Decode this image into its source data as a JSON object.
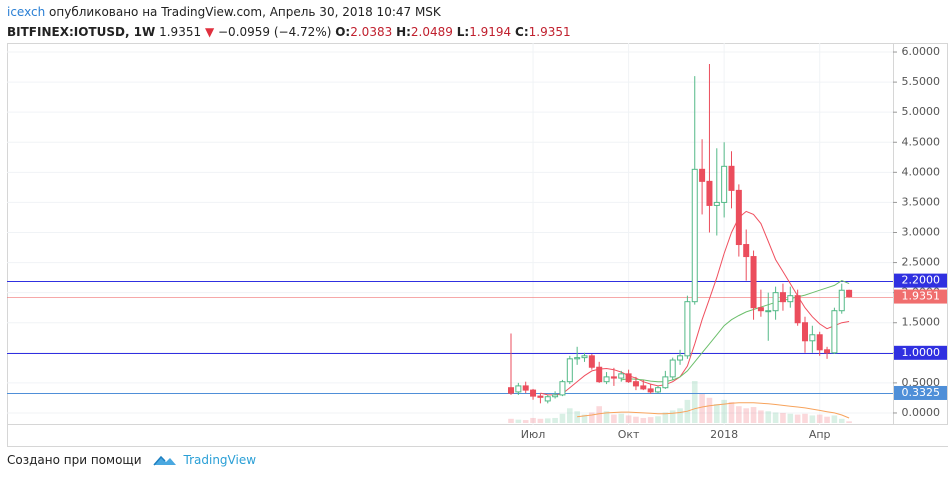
{
  "header": {
    "user": "icexch",
    "published": "опубликовано на TradingView.com, Апрель 30, 2018 10:47 MSK",
    "symbol": "BITFINEX:IOTUSD, 1W",
    "price": "1.9351",
    "change": "−0.0959 (−4.72%)",
    "ohlc": [
      {
        "key": "O:",
        "value": "2.0383"
      },
      {
        "key": "H:",
        "value": "2.0489"
      },
      {
        "key": "L:",
        "value": "1.9194"
      },
      {
        "key": "C:",
        "value": "1.9351"
      }
    ]
  },
  "chart_data": {
    "type": "candlestick",
    "categories": [
      null,
      null,
      null,
      "Июл",
      null,
      null,
      null,
      null,
      null,
      null,
      null,
      null,
      null,
      null,
      null,
      null,
      "Окт",
      null,
      null,
      null,
      null,
      null,
      null,
      null,
      null,
      null,
      null,
      null,
      null,
      "2018",
      null,
      null,
      null,
      null,
      null,
      null,
      null,
      null,
      null,
      null,
      null,
      null,
      "Апр",
      null,
      null,
      null,
      null
    ],
    "open": [
      0.42,
      0.35,
      0.45,
      0.38,
      0.28,
      0.2,
      0.27,
      0.3,
      0.52,
      0.9,
      0.92,
      0.95,
      0.76,
      0.52,
      0.6,
      0.58,
      0.65,
      0.52,
      0.45,
      0.4,
      0.35,
      0.42,
      0.6,
      0.88,
      0.95,
      1.85,
      4.05,
      3.85,
      3.45,
      3.5,
      4.1,
      3.7,
      2.8,
      2.6,
      1.75,
      1.7,
      1.7,
      2.0,
      1.85,
      1.95,
      1.5,
      1.2,
      1.3,
      1.05,
      1.0,
      1.7,
      2.0383
    ],
    "high": [
      1.32,
      0.5,
      0.52,
      0.4,
      0.32,
      0.3,
      0.36,
      0.55,
      0.95,
      1.1,
      1.0,
      0.98,
      0.85,
      0.68,
      0.75,
      0.7,
      0.72,
      0.6,
      0.55,
      0.48,
      0.45,
      0.7,
      0.92,
      1.05,
      1.95,
      5.6,
      4.55,
      5.8,
      4.4,
      4.5,
      4.35,
      3.8,
      3.05,
      2.7,
      2.05,
      2.0,
      2.1,
      2.15,
      2.1,
      2.05,
      1.6,
      1.45,
      1.35,
      1.1,
      1.75,
      2.15,
      2.0489
    ],
    "low": [
      0.3,
      0.3,
      0.33,
      0.22,
      0.16,
      0.16,
      0.24,
      0.28,
      0.48,
      0.8,
      0.85,
      0.72,
      0.5,
      0.48,
      0.45,
      0.52,
      0.5,
      0.38,
      0.38,
      0.32,
      0.33,
      0.4,
      0.55,
      0.8,
      0.9,
      1.8,
      3.3,
      3.0,
      2.95,
      3.25,
      3.4,
      2.6,
      2.2,
      1.55,
      1.6,
      1.2,
      1.55,
      1.7,
      1.75,
      1.45,
      1.0,
      1.0,
      0.95,
      0.9,
      0.98,
      1.65,
      1.9194
    ],
    "close": [
      0.33,
      0.45,
      0.38,
      0.28,
      0.26,
      0.27,
      0.3,
      0.52,
      0.9,
      0.92,
      0.95,
      0.76,
      0.52,
      0.6,
      0.58,
      0.65,
      0.52,
      0.45,
      0.4,
      0.35,
      0.42,
      0.6,
      0.88,
      0.95,
      1.85,
      4.05,
      3.85,
      3.45,
      3.5,
      4.1,
      3.7,
      2.8,
      2.6,
      1.75,
      1.7,
      1.7,
      2.0,
      1.85,
      1.95,
      1.5,
      1.2,
      1.3,
      1.05,
      1.0,
      1.7,
      2.04,
      1.9351
    ],
    "up_color": "#53b987",
    "down_color": "#eb4d5c",
    "moving_averages": [
      {
        "color": "#f0505f",
        "values": [
          null,
          null,
          null,
          null,
          0.33,
          0.3,
          0.3,
          0.32,
          0.42,
          0.52,
          0.62,
          0.7,
          0.73,
          0.74,
          0.72,
          0.68,
          0.62,
          0.58,
          0.52,
          0.48,
          0.45,
          0.47,
          0.52,
          0.6,
          0.78,
          1.15,
          1.55,
          1.9,
          2.25,
          2.65,
          3.0,
          3.25,
          3.35,
          3.3,
          3.15,
          2.85,
          2.55,
          2.35,
          2.15,
          1.95,
          1.75,
          1.6,
          1.48,
          1.4,
          1.45,
          1.5,
          1.52
        ]
      },
      {
        "color": "#6cbf6c",
        "values": [
          null,
          null,
          null,
          null,
          null,
          null,
          null,
          null,
          null,
          null,
          null,
          null,
          null,
          null,
          null,
          0.55,
          0.57,
          0.56,
          0.55,
          0.53,
          0.52,
          0.52,
          0.55,
          0.6,
          0.7,
          0.85,
          1.0,
          1.15,
          1.3,
          1.45,
          1.55,
          1.62,
          1.68,
          1.72,
          1.76,
          1.8,
          1.84,
          1.87,
          1.9,
          1.93,
          1.96,
          2.0,
          2.04,
          2.08,
          2.12,
          2.2,
          2.15
        ]
      }
    ],
    "volume": [
      10,
      8,
      7,
      12,
      10,
      11,
      12,
      22,
      35,
      28,
      20,
      25,
      40,
      28,
      20,
      22,
      18,
      15,
      12,
      14,
      16,
      25,
      30,
      35,
      55,
      100,
      70,
      60,
      45,
      55,
      50,
      40,
      35,
      38,
      30,
      28,
      25,
      24,
      22,
      20,
      22,
      18,
      20,
      15,
      18,
      10,
      4
    ],
    "volume_ma": {
      "color": "#f7a35c",
      "values": [
        null,
        null,
        null,
        null,
        null,
        null,
        null,
        null,
        null,
        15,
        17,
        19,
        22,
        24,
        25,
        26,
        26,
        25,
        24,
        23,
        22,
        22,
        23,
        25,
        28,
        34,
        38,
        41,
        43,
        45,
        47,
        48,
        48,
        48,
        47,
        46,
        44,
        42,
        40,
        38,
        36,
        33,
        30,
        27,
        24,
        19,
        12
      ]
    },
    "ylim": [
      -0.2,
      6.15
    ],
    "yticks": [
      {
        "value": 0,
        "label": "0.0000"
      },
      {
        "value": 0.5,
        "label": "0.5000"
      },
      {
        "value": 1,
        "label": "1.0000"
      },
      {
        "value": 1.5,
        "label": "1.5000"
      },
      {
        "value": 2,
        "label": "2.0000"
      },
      {
        "value": 2.5,
        "label": "2.5000"
      },
      {
        "value": 3,
        "label": "3.0000"
      },
      {
        "value": 3.5,
        "label": "3.5000"
      },
      {
        "value": 4,
        "label": "4.0000"
      },
      {
        "value": 4.5,
        "label": "4.5000"
      },
      {
        "value": 5,
        "label": "5.0000"
      },
      {
        "value": 5.5,
        "label": "5.5000"
      },
      {
        "value": 6,
        "label": "6.0000"
      }
    ],
    "grid": true,
    "levels": [
      {
        "value": 2.2,
        "label": "2.2000",
        "color": "#3030e0"
      },
      {
        "value": 1,
        "label": "1.0000",
        "color": "#3030e0"
      },
      {
        "value": 0.3325,
        "label": "0.3325",
        "color": "#4f8fd8"
      }
    ],
    "last_price": {
      "value": 1.9351,
      "label": "1.9351",
      "color": "#f06e6e"
    }
  },
  "footer": {
    "made_with": "Создано при помощи",
    "brand": "TradingView"
  }
}
